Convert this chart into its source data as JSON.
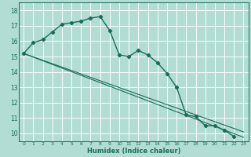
{
  "xlabel": "Humidex (Indice chaleur)",
  "bg_color": "#b2ddd4",
  "grid_color": "#ffffff",
  "line_color": "#1a6b5a",
  "xlim": [
    -0.5,
    23.5
  ],
  "ylim": [
    9.5,
    18.5
  ],
  "yticks": [
    10,
    11,
    12,
    13,
    14,
    15,
    16,
    17,
    18
  ],
  "xticks": [
    0,
    1,
    2,
    3,
    4,
    5,
    6,
    7,
    8,
    9,
    10,
    11,
    12,
    13,
    14,
    15,
    16,
    17,
    18,
    19,
    20,
    21,
    22,
    23
  ],
  "series1_x": [
    0,
    1,
    2,
    3,
    4,
    5,
    6,
    7,
    8,
    9,
    10,
    11,
    12,
    13,
    14,
    15,
    16,
    17,
    18,
    19,
    20,
    21,
    22
  ],
  "series1_y": [
    15.2,
    15.9,
    16.1,
    16.6,
    17.1,
    17.2,
    17.3,
    17.5,
    17.6,
    16.7,
    15.1,
    15.0,
    15.4,
    15.1,
    14.6,
    13.9,
    13.0,
    11.2,
    11.1,
    10.5,
    10.5,
    10.2,
    9.8
  ],
  "line1_x": [
    0,
    23
  ],
  "line1_y": [
    15.2,
    9.75
  ],
  "line2_x": [
    0,
    23
  ],
  "line2_y": [
    15.2,
    10.1
  ]
}
